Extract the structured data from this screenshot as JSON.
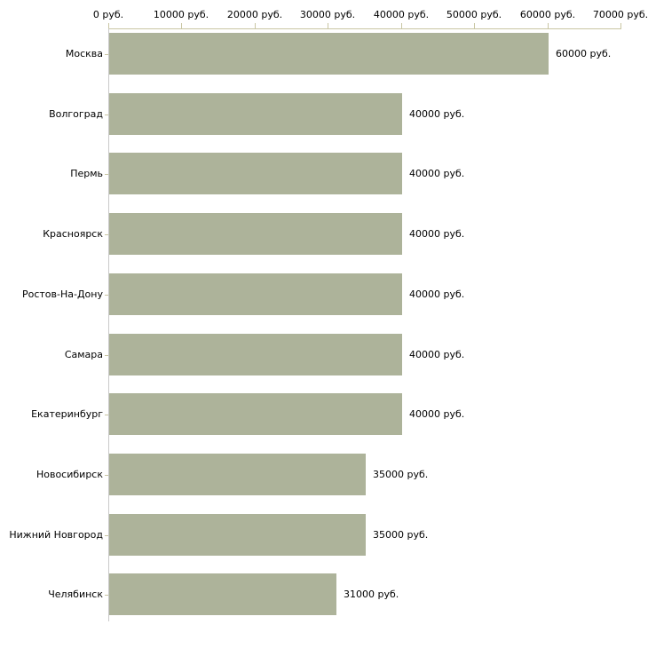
{
  "chart_data": {
    "type": "bar",
    "orientation": "horizontal",
    "title": "",
    "xlabel": "",
    "ylabel": "",
    "grid": false,
    "legend": false,
    "x_axis": {
      "position": "top",
      "min": 0,
      "max": 70000,
      "ticks": [
        0,
        10000,
        20000,
        30000,
        40000,
        50000,
        60000,
        70000
      ],
      "tick_labels": [
        "0 руб.",
        "10000 руб.",
        "20000 руб.",
        "30000 руб.",
        "40000 руб.",
        "50000 руб.",
        "60000 руб.",
        "70000 руб."
      ]
    },
    "categories": [
      "Москва",
      "Волгоград",
      "Пермь",
      "Красноярск",
      "Ростов-На-Дону",
      "Самара",
      "Екатеринбург",
      "Новосибирск",
      "Нижний Новгород",
      "Челябинск"
    ],
    "values": [
      60000,
      40000,
      40000,
      40000,
      40000,
      40000,
      40000,
      35000,
      35000,
      31000
    ],
    "value_labels": [
      "60000 руб.",
      "40000 руб.",
      "40000 руб.",
      "40000 руб.",
      "40000 руб.",
      "40000 руб.",
      "40000 руб.",
      "35000 руб.",
      "35000 руб.",
      "31000 руб."
    ],
    "colors": {
      "bar": "#adb39a",
      "value_axis_line": "#c9c6a3",
      "tick_mark": "#c9c6a3",
      "category_axis_line": "#c9c9c9",
      "text": "#000000",
      "background": "#ffffff"
    }
  }
}
